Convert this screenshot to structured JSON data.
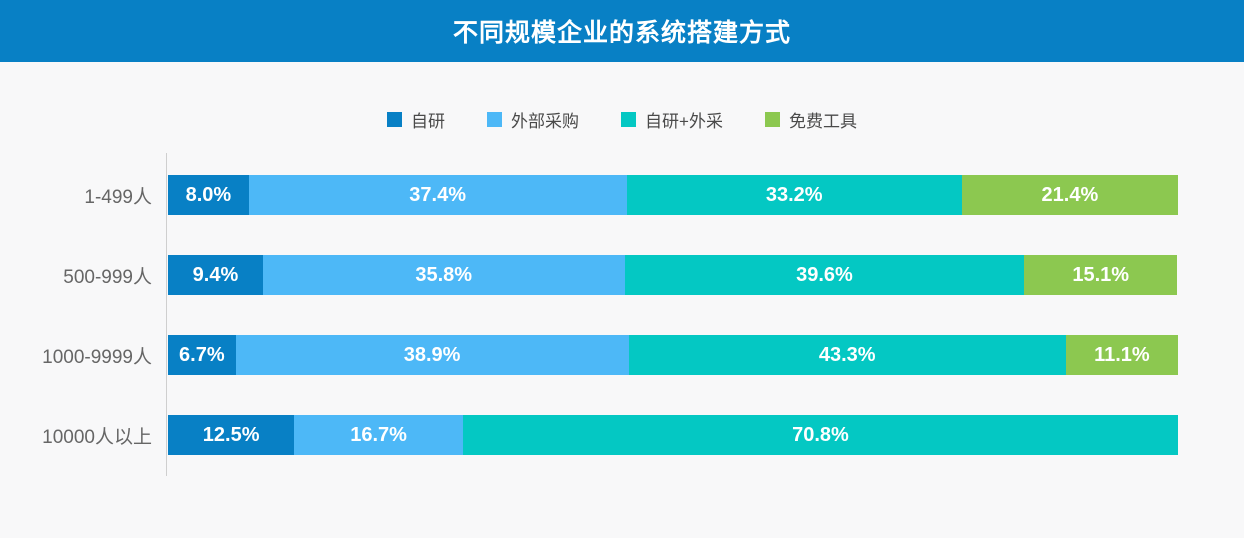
{
  "header": {
    "title": "不同规模企业的系统搭建方式",
    "bg_color": "#0880C5",
    "text_color": "#FFFFFF"
  },
  "legend": [
    {
      "label": "自研",
      "color": "#0880C5"
    },
    {
      "label": "外部采购",
      "color": "#4DB8F7"
    },
    {
      "label": "自研+外采",
      "color": "#04C8C3"
    },
    {
      "label": "免费工具",
      "color": "#8CC850"
    }
  ],
  "chart_data": {
    "type": "bar",
    "orientation": "horizontal",
    "stacked": true,
    "title": "不同规模企业的系统搭建方式",
    "categories": [
      "1-499人",
      "500-999人",
      "1000-9999人",
      "10000人以上"
    ],
    "series": [
      {
        "name": "自研",
        "color": "#0880C5",
        "values": [
          8.0,
          9.4,
          6.7,
          12.5
        ]
      },
      {
        "name": "外部采购",
        "color": "#4DB8F7",
        "values": [
          37.4,
          35.8,
          38.9,
          16.7
        ]
      },
      {
        "name": "自研+外采",
        "color": "#04C8C3",
        "values": [
          33.2,
          39.6,
          43.3,
          70.8
        ]
      },
      {
        "name": "免费工具",
        "color": "#8CC850",
        "values": [
          21.4,
          15.1,
          11.1,
          0
        ]
      }
    ],
    "value_suffix": "%",
    "value_decimals": 1,
    "xlim": [
      0,
      100
    ],
    "legend_position": "top",
    "grid": false,
    "axis_line_color": "#CFCFCF"
  }
}
